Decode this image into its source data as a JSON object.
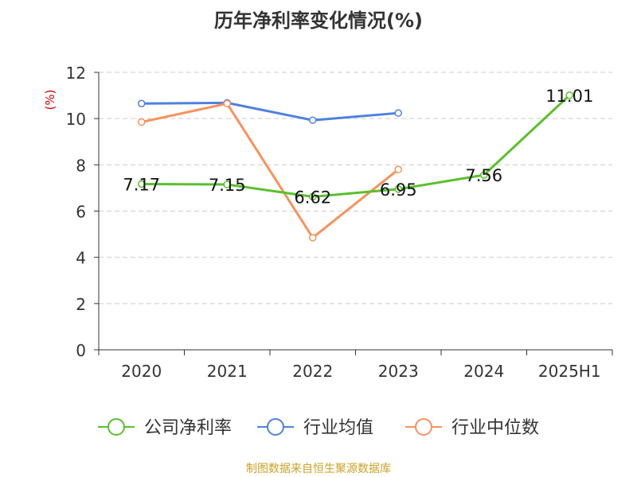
{
  "chart_data": {
    "type": "line",
    "title": "历年净利率变化情况(%)",
    "ylabel": "(%)",
    "xlabel": "",
    "categories": [
      "2020",
      "2021",
      "2022",
      "2023",
      "2024",
      "2025H1"
    ],
    "ylim": [
      0,
      12
    ],
    "yticks": [
      0,
      2,
      4,
      6,
      8,
      10,
      12
    ],
    "grid": true,
    "legend_position": "bottom",
    "series": [
      {
        "name": "公司净利率",
        "color": "#5ac02c",
        "values": [
          7.17,
          7.15,
          6.62,
          6.95,
          7.56,
          11.01
        ],
        "labels": [
          "7.17",
          "7.15",
          "6.62",
          "6.95",
          "7.56",
          "11.01"
        ]
      },
      {
        "name": "行业均值",
        "color": "#4f81e0",
        "values": [
          10.65,
          10.68,
          9.93,
          10.24,
          null,
          null
        ]
      },
      {
        "name": "行业中位数",
        "color": "#f8925c",
        "values": [
          9.85,
          10.65,
          4.85,
          7.8,
          null,
          null
        ]
      }
    ]
  },
  "footer": {
    "source": "制图数据来自恒生聚源数据库"
  }
}
